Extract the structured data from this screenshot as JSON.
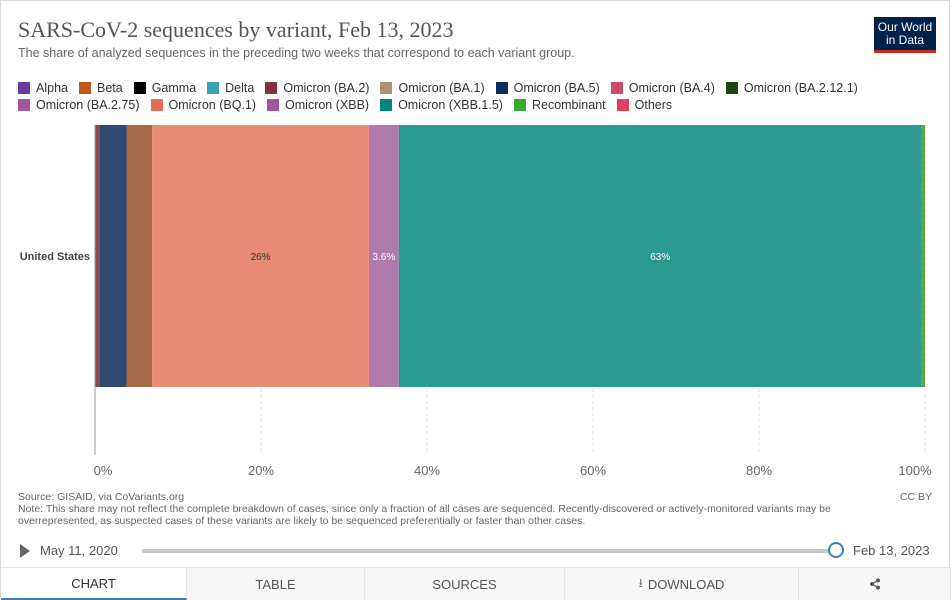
{
  "header": {
    "title": "SARS-CoV-2 sequences by variant, Feb 13, 2023",
    "subtitle": "The share of analyzed sequences in the preceding two weeks that correspond to each variant group.",
    "logo_line1": "Our World",
    "logo_line2": "in Data"
  },
  "legend_rows": [
    [
      {
        "label": "Alpha",
        "color": "#6d3e91"
      },
      {
        "label": "Beta",
        "color": "#c05917"
      },
      {
        "label": "Gamma",
        "color": "#000000"
      },
      {
        "label": "Delta",
        "color": "#3ba1b5"
      },
      {
        "label": "Omicron (BA.2)",
        "color": "#883039"
      },
      {
        "label": "Omicron (BA.1)",
        "color": "#b19070"
      },
      {
        "label": "Omicron (BA.5)",
        "color": "#0a2e5c"
      },
      {
        "label": "Omicron (BA.4)",
        "color": "#c94f68"
      },
      {
        "label": "Omicron (BA.2.12.1)",
        "color": "#18470f"
      }
    ],
    [
      {
        "label": "Omicron (BA.2.75)",
        "color": "#a2559c"
      },
      {
        "label": "Omicron (BQ.1)",
        "color": "#e56e5a"
      },
      {
        "label": "Omicron (XBB)",
        "color": "#a2559c"
      },
      {
        "label": "Omicron (XBB.1.5)",
        "color": "#00847e"
      },
      {
        "label": "Recombinant",
        "color": "#38aa2e"
      },
      {
        "label": "Others",
        "color": "#e24060"
      }
    ]
  ],
  "chart_data": {
    "type": "bar",
    "orientation": "horizontal",
    "stacked": true,
    "categories": [
      "United States"
    ],
    "series": [
      {
        "name": "Omicron (BA.2)",
        "values": [
          0.6
        ],
        "color": "#8a4a4f"
      },
      {
        "name": "Omicron (BA.5)",
        "values": [
          3.2
        ],
        "color": "#2f4a72"
      },
      {
        "name": "Omicron (BA.2.75)",
        "values": [
          3.1
        ],
        "color": "#a56a4a"
      },
      {
        "name": "Omicron (BQ.1)",
        "values": [
          26.1
        ],
        "color": "#e88a78"
      },
      {
        "name": "Omicron (XBB)",
        "values": [
          3.6
        ],
        "color": "#b07aaf"
      },
      {
        "name": "Omicron (XBB.1.5)",
        "values": [
          63.0
        ],
        "color": "#2a9a91"
      },
      {
        "name": "Recombinant",
        "values": [
          0.4
        ],
        "color": "#5aa845"
      }
    ],
    "data_labels": [
      {
        "series": "Omicron (BQ.1)",
        "text": "26%",
        "color": "#333333"
      },
      {
        "series": "Omicron (XBB)",
        "text": "3.6%",
        "color": "#ffffff"
      },
      {
        "series": "Omicron (XBB.1.5)",
        "text": "63%",
        "color": "#ffffff"
      }
    ],
    "xticks": [
      {
        "value": 0,
        "label": "0%"
      },
      {
        "value": 20,
        "label": "20%"
      },
      {
        "value": 40,
        "label": "40%"
      },
      {
        "value": 60,
        "label": "60%"
      },
      {
        "value": 80,
        "label": "80%"
      },
      {
        "value": 100,
        "label": "100%"
      }
    ],
    "xlim": [
      0,
      100
    ],
    "grid": "vertical-dashed",
    "legend_position": "top"
  },
  "footer": {
    "source": "Source: GISAID, via CoVariants.org",
    "note": "Note: This share may not reflect the complete breakdown of cases, since only a fraction of all cases are sequenced. Recently-discovered or actively-monitored variants may be overrepresented, as suspected cases of these variants are likely to be sequenced preferentially or faster than other cases.",
    "license": "CC BY"
  },
  "timeline": {
    "start_label": "May 11, 2020",
    "end_label": "Feb 13, 2023",
    "position": 1.0
  },
  "tabs": [
    {
      "label": "CHART",
      "icon": "",
      "active": true
    },
    {
      "label": "TABLE",
      "icon": "",
      "active": false
    },
    {
      "label": "SOURCES",
      "icon": "",
      "active": false
    },
    {
      "label": "DOWNLOAD",
      "icon": "download-icon",
      "active": false
    },
    {
      "label": "",
      "icon": "share-icon",
      "active": false
    }
  ]
}
